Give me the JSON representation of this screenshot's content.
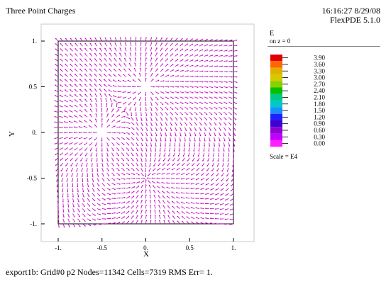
{
  "header": {
    "title": "Three Point Charges",
    "timestamp": "16:16:27 8/29/08",
    "version": "FlexPDE 5.1.0"
  },
  "legend": {
    "title": "E",
    "subtitle": "on z = 0",
    "scale_label": "Scale = E4",
    "levels": [
      "3.90",
      "3.60",
      "3.30",
      "3.00",
      "2.70",
      "2.40",
      "2.10",
      "1.80",
      "1.50",
      "1.20",
      "0.90",
      "0.60",
      "0.30",
      "0.00"
    ],
    "colors": [
      "#e00000",
      "#ff6600",
      "#e0b000",
      "#d8c800",
      "#88d000",
      "#00c000",
      "#00c888",
      "#00c8c8",
      "#1890ff",
      "#2020ff",
      "#4000d0",
      "#9000d0",
      "#c000ff",
      "#ff20ff"
    ]
  },
  "footer": {
    "text": "export1b:  Grid#0  p2  Nodes=11342 Cells=7319 RMS Err= 1."
  },
  "chart_data": {
    "type": "vector-field",
    "xlabel": "X",
    "ylabel": "Y",
    "xlim": [
      -1,
      1
    ],
    "ylim": [
      -1,
      1
    ],
    "xticks": [
      "-1.",
      "-0.5",
      "0.",
      "0.5",
      "1."
    ],
    "yticks": [
      "1.",
      "0.5",
      "0.",
      "-0.5",
      "-1."
    ],
    "arrow_color": "#c000c0",
    "charges": [
      {
        "x": 0.0,
        "y": 0.5,
        "q": 1
      },
      {
        "x": -0.5,
        "y": 0.0,
        "q": 1
      },
      {
        "x": 0.0,
        "y": -0.5,
        "q": -1
      }
    ]
  }
}
